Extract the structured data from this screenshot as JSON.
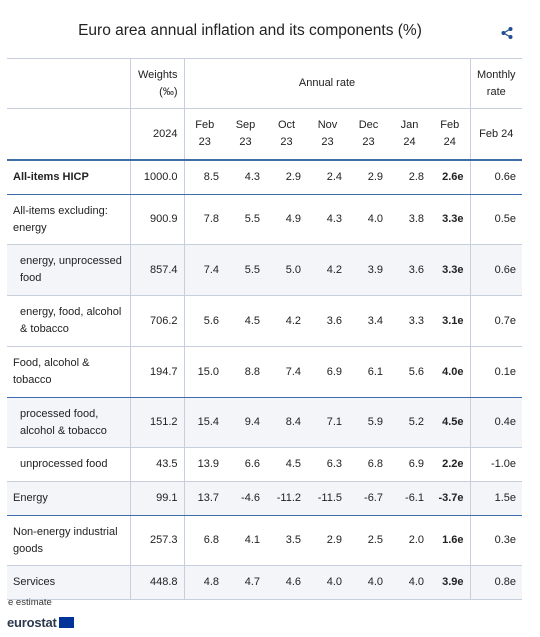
{
  "title": "Euro area annual inflation and its components (%)",
  "share_icon": "share-icon",
  "header": {
    "weights_label": "Weights",
    "weights_unit": "(‰)",
    "weights_year": "2024",
    "annual_rate_label": "Annual rate",
    "monthly_rate_label": "Monthly rate",
    "monthly_line1": "Monthly",
    "monthly_line2": "rate",
    "periods": [
      {
        "m": "Feb",
        "y": "23"
      },
      {
        "m": "Sep",
        "y": "23"
      },
      {
        "m": "Oct",
        "y": "23"
      },
      {
        "m": "Nov",
        "y": "23"
      },
      {
        "m": "Dec",
        "y": "23"
      },
      {
        "m": "Jan",
        "y": "24"
      },
      {
        "m": "Feb",
        "y": "24"
      }
    ],
    "monthly_period": "Feb 24"
  },
  "rows": [
    {
      "label": "All-items HICP",
      "weight": "1000.0",
      "values": [
        "8.5",
        "4.3",
        "2.9",
        "2.4",
        "2.9",
        "2.8",
        "2.6e"
      ],
      "monthly": "0.6e"
    },
    {
      "label": "All-items excluding:",
      "label2": "energy",
      "weight": "900.9",
      "values": [
        "7.8",
        "5.5",
        "4.9",
        "4.3",
        "4.0",
        "3.8",
        "3.3e"
      ],
      "monthly": "0.5e"
    },
    {
      "label": "energy, unprocessed",
      "label2": "food",
      "weight": "857.4",
      "values": [
        "7.4",
        "5.5",
        "5.0",
        "4.2",
        "3.9",
        "3.6",
        "3.3e"
      ],
      "monthly": "0.6e"
    },
    {
      "label": "energy, food, alcohol",
      "label2": "& tobacco",
      "weight": "706.2",
      "values": [
        "5.6",
        "4.5",
        "4.2",
        "3.6",
        "3.4",
        "3.3",
        "3.1e"
      ],
      "monthly": "0.7e"
    },
    {
      "label": "Food, alcohol &",
      "label2": "tobacco",
      "weight": "194.7",
      "values": [
        "15.0",
        "8.8",
        "7.4",
        "6.9",
        "6.1",
        "5.6",
        "4.0e"
      ],
      "monthly": "0.1e"
    },
    {
      "label": "processed food,",
      "label2": "alcohol & tobacco",
      "weight": "151.2",
      "values": [
        "15.4",
        "9.4",
        "8.4",
        "7.1",
        "5.9",
        "5.2",
        "4.5e"
      ],
      "monthly": "0.4e"
    },
    {
      "label": "unprocessed food",
      "weight": "43.5",
      "values": [
        "13.9",
        "6.6",
        "4.5",
        "6.3",
        "6.8",
        "6.9",
        "2.2e"
      ],
      "monthly": "-1.0e"
    },
    {
      "label": "Energy",
      "weight": "99.1",
      "values": [
        "13.7",
        "-4.6",
        "-11.2",
        "-11.5",
        "-6.7",
        "-6.1",
        "-3.7e"
      ],
      "monthly": "1.5e"
    },
    {
      "label": "Non-energy industrial",
      "label2": "goods",
      "weight": "257.3",
      "values": [
        "6.8",
        "4.1",
        "3.5",
        "2.9",
        "2.5",
        "2.0",
        "1.6e"
      ],
      "monthly": "0.3e"
    },
    {
      "label": "Services",
      "weight": "448.8",
      "values": [
        "4.8",
        "4.7",
        "4.6",
        "4.0",
        "4.0",
        "4.0",
        "3.9e"
      ],
      "monthly": "0.8e"
    }
  ],
  "footnote": "e estimate",
  "logo_text": "eurostat"
}
